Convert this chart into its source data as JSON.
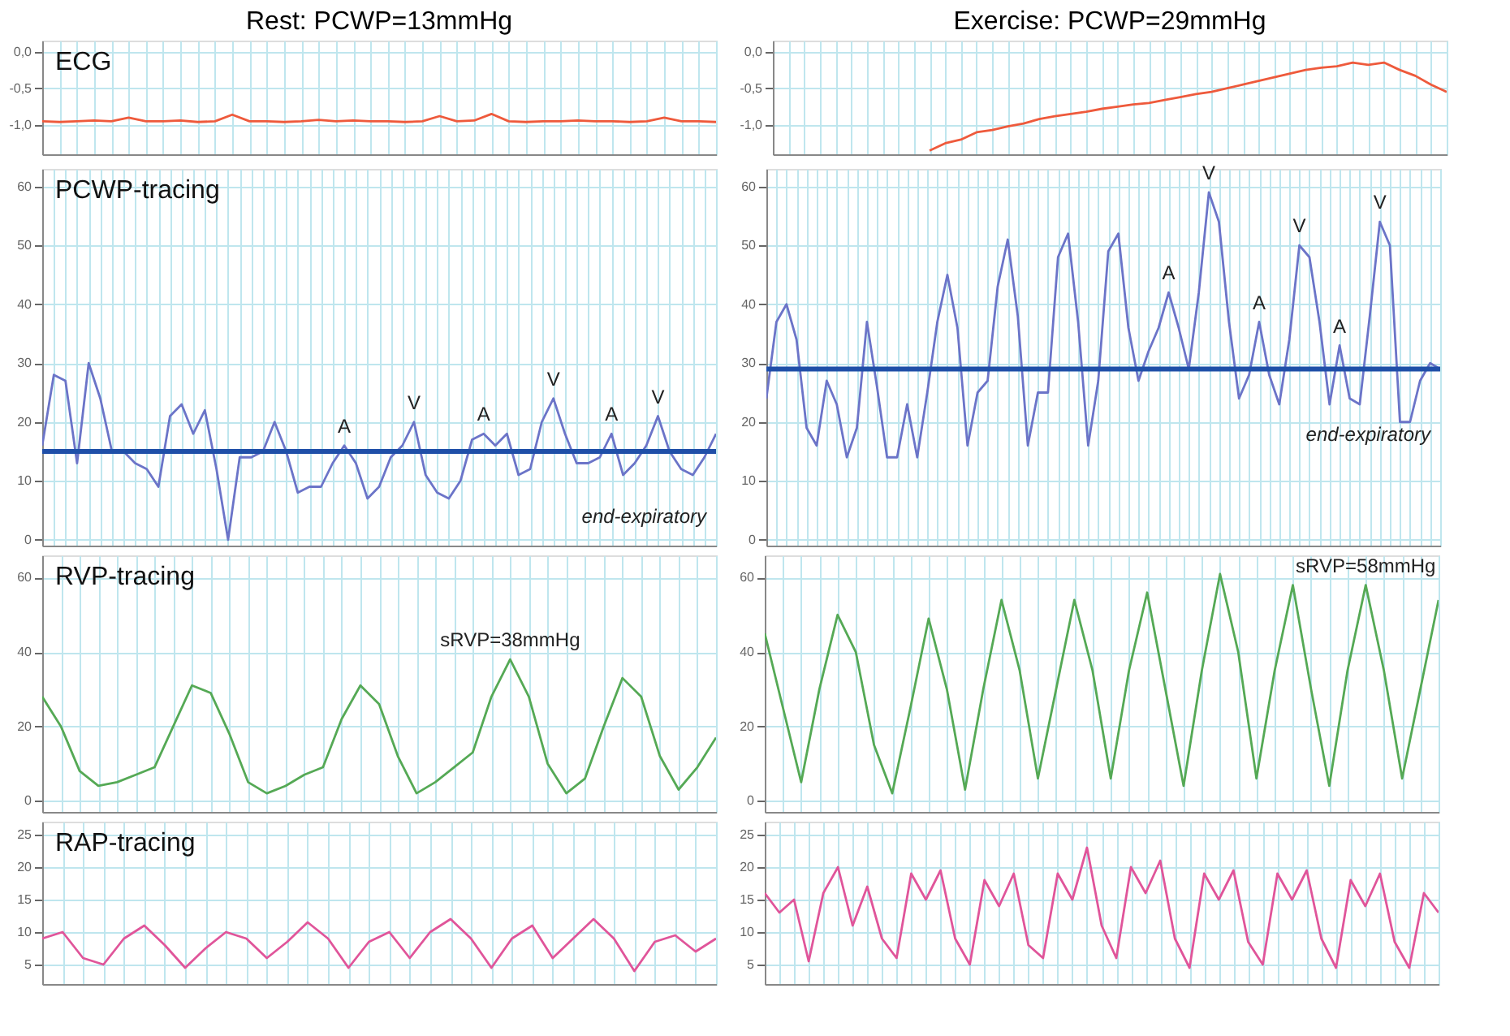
{
  "chart_data": [
    {
      "type": "line",
      "title": "Rest: PCWP=13mmHg",
      "annotations": [
        "ECG"
      ],
      "tick_labels": "y",
      "grid": true,
      "ylim": [
        -1.4,
        0.15
      ],
      "yticks": [
        {
          "value": 0,
          "label": "0,0"
        },
        {
          "value": -0.5,
          "label": "-0,5"
        },
        {
          "value": -1,
          "label": "-1,0"
        }
      ],
      "categories": [
        null,
        null,
        null,
        null,
        null,
        null,
        null,
        null,
        null,
        null,
        null,
        null,
        null,
        null,
        null,
        null,
        null,
        null,
        null,
        null,
        null,
        null,
        null,
        null,
        null,
        null,
        null,
        null,
        null,
        null,
        null,
        null,
        null,
        null,
        null,
        null,
        null,
        null,
        null,
        null
      ],
      "series": [
        {
          "color": "#ee5a3c",
          "values": [
            -0.95,
            -0.96,
            -0.95,
            -0.94,
            -0.95,
            -0.9,
            -0.95,
            -0.95,
            -0.94,
            -0.96,
            -0.95,
            -0.86,
            -0.95,
            -0.95,
            -0.96,
            -0.95,
            -0.93,
            -0.95,
            -0.94,
            -0.95,
            -0.95,
            -0.96,
            -0.95,
            -0.88,
            -0.95,
            -0.94,
            -0.85,
            -0.95,
            -0.96,
            -0.95,
            -0.95,
            -0.94,
            -0.95,
            -0.95,
            -0.96,
            -0.95,
            -0.9,
            -0.95,
            -0.95,
            -0.96
          ]
        }
      ]
    },
    {
      "type": "line",
      "title": "Exercise: PCWP=29mmHg",
      "tick_labels": "y",
      "grid": true,
      "ylim": [
        -1.4,
        0.15
      ],
      "yticks": [
        {
          "value": 0,
          "label": "0,0"
        },
        {
          "value": -0.5,
          "label": "-0,5"
        },
        {
          "value": -1,
          "label": "-1,0"
        }
      ],
      "categories": [
        null,
        null,
        null,
        null,
        null,
        null,
        null,
        null,
        null,
        null,
        null,
        null,
        null,
        null,
        null,
        null,
        null,
        null,
        null,
        null,
        null,
        null,
        null,
        null,
        null,
        null,
        null,
        null,
        null,
        null,
        null,
        null,
        null,
        null,
        null,
        null,
        null,
        null,
        null,
        null,
        null,
        null,
        null,
        null
      ],
      "series": [
        {
          "color": "#ee5a3c",
          "values": [
            null,
            null,
            null,
            null,
            null,
            null,
            null,
            null,
            null,
            null,
            -1.35,
            -1.25,
            -1.2,
            -1.1,
            -1.07,
            -1.02,
            -0.98,
            -0.92,
            -0.88,
            -0.85,
            -0.82,
            -0.78,
            -0.75,
            -0.72,
            -0.7,
            -0.66,
            -0.62,
            -0.58,
            -0.55,
            -0.5,
            -0.45,
            -0.4,
            -0.35,
            -0.3,
            -0.25,
            -0.22,
            -0.2,
            -0.15,
            -0.18,
            -0.15,
            -0.25,
            -0.33,
            -0.45,
            -0.55
          ]
        }
      ]
    },
    {
      "type": "line",
      "annotations": [
        "PCWP-tracing"
      ],
      "tick_labels": "y",
      "grid": true,
      "ylim": [
        -1,
        63
      ],
      "yticks": [
        0,
        10,
        20,
        30,
        40,
        50,
        60
      ],
      "ref_lines": [
        {
          "axis": "y",
          "value": 15,
          "label": "end-expiratory",
          "color": "#1f4fa8"
        }
      ],
      "categories": [
        null,
        null,
        null,
        null,
        null,
        null,
        null,
        null,
        null,
        null,
        null,
        null,
        null,
        null,
        null,
        null,
        null,
        null,
        null,
        null,
        null,
        null,
        null,
        null,
        null,
        null,
        null,
        null,
        null,
        null,
        null,
        null,
        null,
        null,
        null,
        null,
        null,
        null,
        null,
        null,
        null,
        null,
        null,
        null,
        null,
        null,
        null,
        null,
        null,
        null,
        null,
        null,
        null,
        null,
        null,
        null,
        null,
        null,
        null
      ],
      "series": [
        {
          "color": "#6b74c8",
          "values": [
            16,
            28,
            27,
            13,
            30,
            24,
            15,
            15,
            13,
            12,
            9,
            21,
            23,
            18,
            22,
            12,
            0,
            14,
            14,
            15,
            20,
            15,
            8,
            9,
            9,
            13,
            16,
            13,
            7,
            9,
            14,
            16,
            20,
            11,
            8,
            7,
            10,
            17,
            18,
            16,
            18,
            11,
            12,
            20,
            24,
            18,
            13,
            13,
            14,
            18,
            11,
            13,
            16,
            21,
            15,
            12,
            11,
            14,
            18
          ],
          "value_labels": [
            null,
            null,
            null,
            null,
            null,
            null,
            null,
            null,
            null,
            null,
            null,
            null,
            null,
            null,
            null,
            null,
            null,
            null,
            null,
            null,
            null,
            null,
            null,
            null,
            null,
            null,
            "A",
            null,
            null,
            null,
            null,
            null,
            "V",
            null,
            null,
            null,
            null,
            null,
            "A",
            null,
            null,
            null,
            null,
            null,
            "V",
            null,
            null,
            null,
            null,
            "A",
            null,
            null,
            null,
            "V",
            null,
            null,
            null,
            null,
            null
          ]
        }
      ]
    },
    {
      "type": "line",
      "tick_labels": "y",
      "grid": true,
      "ylim": [
        -1,
        63
      ],
      "yticks": [
        0,
        10,
        20,
        30,
        40,
        50,
        60
      ],
      "ref_lines": [
        {
          "axis": "y",
          "value": 29,
          "label": "end-expiratory",
          "color": "#1f4fa8"
        }
      ],
      "categories": [
        null,
        null,
        null,
        null,
        null,
        null,
        null,
        null,
        null,
        null,
        null,
        null,
        null,
        null,
        null,
        null,
        null,
        null,
        null,
        null,
        null,
        null,
        null,
        null,
        null,
        null,
        null,
        null,
        null,
        null,
        null,
        null,
        null,
        null,
        null,
        null,
        null,
        null,
        null,
        null,
        null,
        null,
        null,
        null,
        null,
        null,
        null,
        null,
        null,
        null,
        null,
        null,
        null,
        null,
        null,
        null,
        null,
        null,
        null,
        null,
        null,
        null,
        null,
        null,
        null,
        null,
        null,
        null
      ],
      "series": [
        {
          "color": "#6b74c8",
          "values": [
            24,
            37,
            40,
            34,
            19,
            16,
            27,
            23,
            14,
            19,
            37,
            26,
            14,
            14,
            23,
            14,
            25,
            37,
            45,
            36,
            16,
            25,
            27,
            43,
            51,
            38,
            16,
            25,
            25,
            48,
            52,
            37,
            16,
            27,
            49,
            52,
            36,
            27,
            32,
            36,
            42,
            36,
            29,
            42,
            59,
            54,
            37,
            24,
            28,
            37,
            28,
            23,
            34,
            50,
            48,
            37,
            23,
            33,
            24,
            23,
            38,
            54,
            50,
            20,
            20,
            27,
            30,
            29
          ],
          "value_labels": [
            null,
            null,
            null,
            null,
            null,
            null,
            null,
            null,
            null,
            null,
            null,
            null,
            null,
            null,
            null,
            null,
            null,
            null,
            null,
            null,
            null,
            null,
            null,
            null,
            null,
            null,
            null,
            null,
            null,
            null,
            null,
            null,
            null,
            null,
            null,
            null,
            null,
            null,
            null,
            null,
            "A",
            null,
            null,
            null,
            "V",
            null,
            null,
            null,
            null,
            "A",
            null,
            null,
            null,
            "V",
            null,
            null,
            null,
            "A",
            null,
            null,
            null,
            "V",
            null,
            null,
            null,
            null,
            null,
            null
          ]
        }
      ]
    },
    {
      "type": "line",
      "annotations": [
        "RVP-tracing"
      ],
      "tick_labels": "y",
      "grid": true,
      "ylim": [
        -3,
        66
      ],
      "yticks": [
        0,
        20,
        40,
        60
      ],
      "categories": [
        null,
        null,
        null,
        null,
        null,
        null,
        null,
        null,
        null,
        null,
        null,
        null,
        null,
        null,
        null,
        null,
        null,
        null,
        null,
        null,
        null,
        null,
        null,
        null,
        null,
        null,
        null,
        null,
        null,
        null,
        null,
        null,
        null,
        null,
        null,
        null,
        null
      ],
      "series": [
        {
          "color": "#55a955",
          "values": [
            28,
            20,
            8,
            4,
            5,
            7,
            9,
            20,
            31,
            29,
            18,
            5,
            2,
            4,
            7,
            9,
            22,
            31,
            26,
            12,
            2,
            5,
            9,
            13,
            28,
            38,
            28,
            10,
            2,
            6,
            20,
            33,
            28,
            12,
            3,
            9,
            17
          ],
          "value_labels": [
            null,
            null,
            null,
            null,
            null,
            null,
            null,
            null,
            null,
            null,
            null,
            null,
            null,
            null,
            null,
            null,
            null,
            null,
            null,
            null,
            null,
            null,
            null,
            null,
            null,
            "sRVP=38mmHg",
            null,
            null,
            null,
            null,
            null,
            null,
            null,
            null,
            null,
            null,
            null
          ]
        }
      ]
    },
    {
      "type": "line",
      "tick_labels": "y",
      "grid": true,
      "ylim": [
        -3,
        66
      ],
      "yticks": [
        0,
        20,
        40,
        60
      ],
      "categories": [
        null,
        null,
        null,
        null,
        null,
        null,
        null,
        null,
        null,
        null,
        null,
        null,
        null,
        null,
        null,
        null,
        null,
        null,
        null,
        null,
        null,
        null,
        null,
        null,
        null,
        null,
        null,
        null,
        null,
        null,
        null,
        null,
        null,
        null,
        null,
        null,
        null,
        null
      ],
      "series": [
        {
          "color": "#55a955",
          "values": [
            45,
            25,
            5,
            30,
            50,
            40,
            15,
            2,
            25,
            49,
            30,
            3,
            30,
            54,
            35,
            6,
            30,
            54,
            35,
            6,
            35,
            56,
            30,
            4,
            35,
            61,
            40,
            6,
            35,
            58,
            30,
            4,
            35,
            58,
            35,
            6,
            30,
            54
          ],
          "value_labels": [
            null,
            null,
            null,
            null,
            null,
            null,
            null,
            null,
            null,
            null,
            null,
            null,
            null,
            null,
            null,
            null,
            null,
            null,
            null,
            null,
            null,
            null,
            null,
            null,
            null,
            null,
            null,
            null,
            null,
            null,
            null,
            null,
            null,
            "sRVP=58mmHg",
            null,
            null,
            null,
            null
          ]
        }
      ]
    },
    {
      "type": "line",
      "annotations": [
        "RAP-tracing"
      ],
      "tick_labels": "y",
      "grid": true,
      "ylim": [
        2,
        27
      ],
      "yticks": [
        5,
        10,
        15,
        20,
        25
      ],
      "categories": [
        null,
        null,
        null,
        null,
        null,
        null,
        null,
        null,
        null,
        null,
        null,
        null,
        null,
        null,
        null,
        null,
        null,
        null,
        null,
        null,
        null,
        null,
        null,
        null,
        null,
        null,
        null,
        null,
        null,
        null,
        null,
        null,
        null,
        null
      ],
      "series": [
        {
          "color": "#e0559a",
          "values": [
            9,
            10,
            6,
            5,
            9,
            11,
            8,
            4.5,
            7.5,
            10,
            9,
            6,
            8.5,
            11.5,
            9,
            4.5,
            8.5,
            10,
            6,
            10,
            12,
            9,
            4.5,
            9,
            11,
            6,
            9,
            12,
            9,
            4,
            8.5,
            9.5,
            7,
            9
          ]
        }
      ]
    },
    {
      "type": "line",
      "tick_labels": "y",
      "grid": true,
      "ylim": [
        2,
        27
      ],
      "yticks": [
        5,
        10,
        15,
        20,
        25
      ],
      "categories": [
        null,
        null,
        null,
        null,
        null,
        null,
        null,
        null,
        null,
        null,
        null,
        null,
        null,
        null,
        null,
        null,
        null,
        null,
        null,
        null,
        null,
        null,
        null,
        null,
        null,
        null,
        null,
        null,
        null,
        null,
        null,
        null,
        null,
        null,
        null,
        null,
        null,
        null,
        null,
        null,
        null,
        null,
        null,
        null,
        null,
        null,
        null
      ],
      "series": [
        {
          "color": "#e0559a",
          "values": [
            16,
            13,
            15,
            5.5,
            16,
            20,
            11,
            17,
            9,
            6,
            19,
            15,
            19.5,
            9,
            5,
            18,
            14,
            19,
            8,
            6,
            19,
            15,
            23,
            11,
            6,
            20,
            16,
            21,
            9,
            4.5,
            19,
            15,
            19.5,
            8.5,
            5,
            19,
            15,
            19.5,
            9,
            4.5,
            18,
            14,
            19,
            8.5,
            4.5,
            16,
            13
          ]
        }
      ]
    }
  ]
}
